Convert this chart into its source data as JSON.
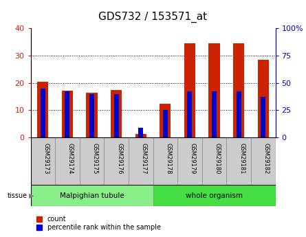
{
  "title": "GDS732 / 153571_at",
  "samples": [
    "GSM29173",
    "GSM29174",
    "GSM29175",
    "GSM29176",
    "GSM29177",
    "GSM29178",
    "GSM29179",
    "GSM29180",
    "GSM29181",
    "GSM29182"
  ],
  "count_values": [
    20.5,
    17.2,
    16.5,
    17.5,
    1.3,
    12.5,
    34.5,
    34.5,
    34.5,
    28.5
  ],
  "percentile_values": [
    45.0,
    42.0,
    40.0,
    40.0,
    9.0,
    25.0,
    42.5,
    42.5,
    42.5,
    37.5
  ],
  "groups": [
    {
      "label": "Malpighian tubule",
      "start": 0,
      "end": 5
    },
    {
      "label": "whole organism",
      "start": 5,
      "end": 10
    }
  ],
  "ylim_left": [
    0,
    40
  ],
  "ylim_right": [
    0,
    100
  ],
  "yticks_left": [
    0,
    10,
    20,
    30,
    40
  ],
  "yticks_right": [
    0,
    25,
    50,
    75,
    100
  ],
  "bar_color_red": "#CC2200",
  "bar_color_blue": "#0000CC",
  "axis_bg": "#FFFFFF",
  "tick_bg": "#CCCCCC",
  "group_bg_1": "#88EE88",
  "group_bg_2": "#44DD44",
  "title_fontsize": 11,
  "bar_width": 0.45,
  "blue_bar_width": 0.2,
  "tissue_label": "tissue"
}
